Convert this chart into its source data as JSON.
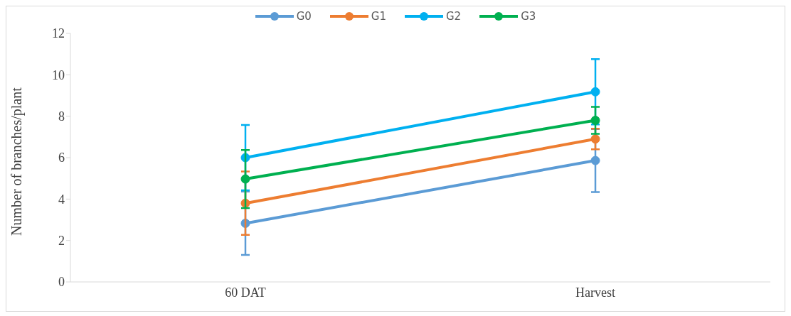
{
  "chart_data": {
    "type": "line",
    "ylabel": "Number of branches/plant",
    "categories": [
      "60 DAT",
      "Harvest"
    ],
    "series": [
      {
        "name": "G0",
        "color": "#5b9bd5",
        "values": [
          2.83,
          5.86
        ],
        "errors": [
          1.53,
          1.52
        ]
      },
      {
        "name": "G1",
        "color": "#ed7d31",
        "values": [
          3.8,
          6.9
        ],
        "errors": [
          1.53,
          0.5
        ]
      },
      {
        "name": "G2",
        "color": "#00b0f0",
        "values": [
          6.0,
          9.18
        ],
        "errors": [
          1.58,
          1.58
        ]
      },
      {
        "name": "G3",
        "color": "#00b050",
        "values": [
          4.97,
          7.8
        ],
        "errors": [
          1.4,
          0.65
        ]
      }
    ],
    "ylim": [
      0,
      12
    ],
    "yticks": [
      0,
      2,
      4,
      6,
      8,
      10,
      12
    ],
    "grid": false,
    "legend": "top",
    "marker": "circle",
    "line_style": "solid"
  }
}
